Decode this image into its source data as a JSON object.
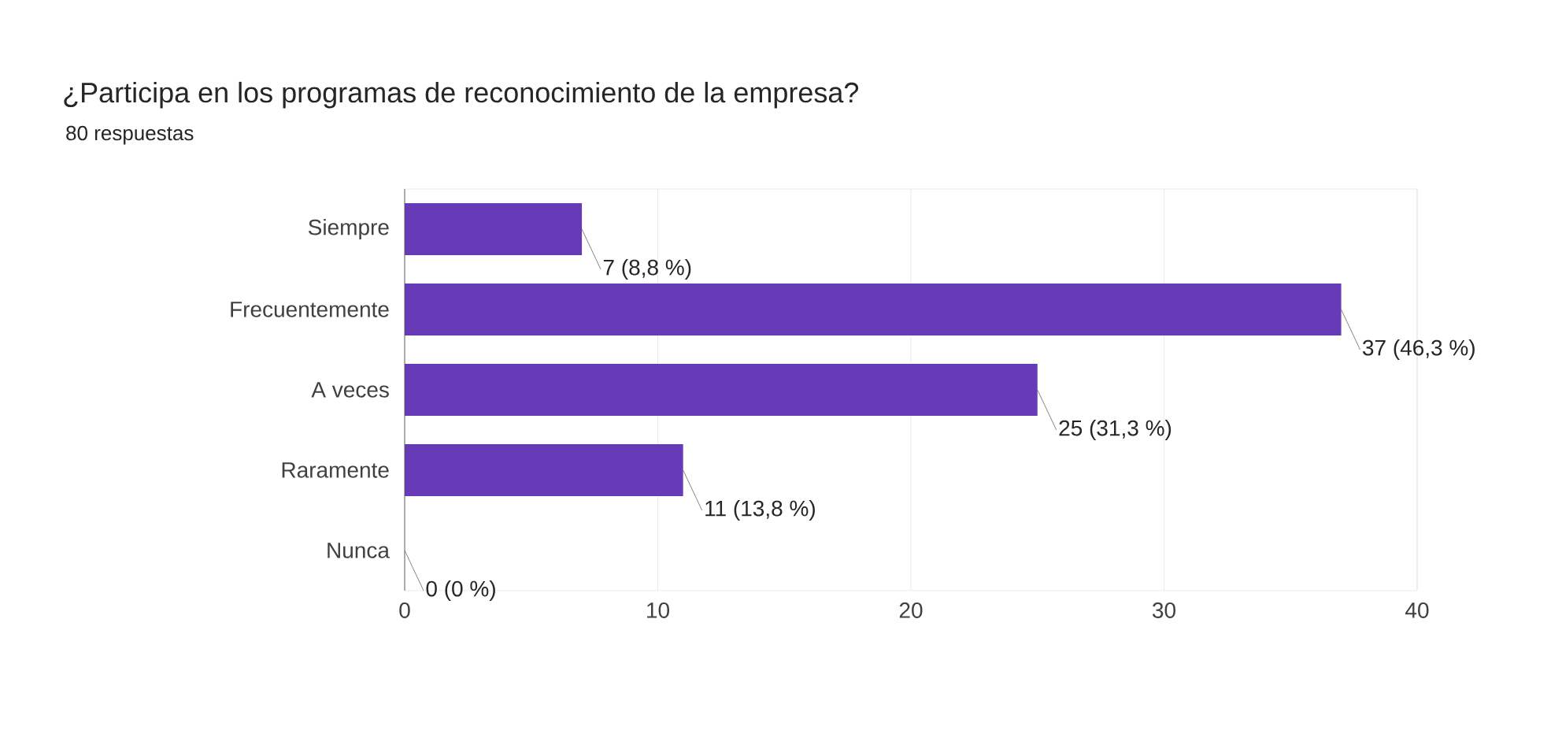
{
  "chart_data": {
    "type": "bar",
    "orientation": "horizontal",
    "title": "¿Participa en los programas de reconocimiento de la empresa?",
    "subtitle": "80 respuestas",
    "categories": [
      "Siempre",
      "Frecuentemente",
      "A veces",
      "Raramente",
      "Nunca"
    ],
    "values": [
      7,
      37,
      25,
      11,
      0
    ],
    "value_labels": [
      "7 (8,8 %)",
      "37 (46,3 %)",
      "25 (31,3 %)",
      "11 (13,8 %)",
      "0 (0 %)"
    ],
    "color": "#673ab7",
    "xlim": [
      0,
      40
    ],
    "xticks": [
      0,
      10,
      20,
      30,
      40
    ],
    "grid": "x"
  }
}
